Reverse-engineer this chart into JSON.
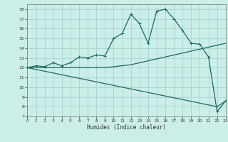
{
  "xlabel": "Humidex (Indice chaleur)",
  "bg_color": "#cceee8",
  "grid_color": "#aad8d0",
  "line_color": "#1a6b5a",
  "line1_x": [
    0,
    1,
    2,
    3,
    4,
    5,
    6,
    7,
    8,
    9,
    10,
    11,
    12,
    13,
    14,
    15,
    16,
    17,
    18,
    19,
    20,
    21,
    22,
    23
  ],
  "line1_y": [
    12.0,
    12.2,
    12.1,
    12.5,
    12.2,
    12.5,
    13.1,
    13.0,
    13.3,
    13.2,
    15.0,
    15.5,
    17.5,
    16.5,
    14.5,
    17.8,
    18.0,
    17.0,
    15.8,
    14.5,
    14.4,
    13.1,
    7.5,
    8.6
  ],
  "line2_x": [
    0,
    1,
    2,
    3,
    4,
    5,
    6,
    7,
    8,
    9,
    10,
    11,
    12,
    13,
    14,
    15,
    16,
    17,
    18,
    19,
    20,
    21,
    22,
    23
  ],
  "line2_y": [
    12.0,
    12.0,
    12.0,
    12.0,
    12.0,
    12.0,
    12.0,
    12.0,
    12.0,
    12.0,
    12.1,
    12.2,
    12.3,
    12.5,
    12.7,
    12.9,
    13.1,
    13.3,
    13.5,
    13.7,
    13.9,
    14.1,
    14.3,
    14.5
  ],
  "line3_x": [
    0,
    22,
    23
  ],
  "line3_y": [
    12.0,
    8.0,
    8.6
  ],
  "xlim": [
    0,
    23
  ],
  "ylim": [
    7,
    18.5
  ],
  "yticks": [
    7,
    8,
    9,
    10,
    11,
    12,
    13,
    14,
    15,
    16,
    17,
    18
  ],
  "xticks": [
    0,
    1,
    2,
    3,
    4,
    5,
    6,
    7,
    8,
    9,
    10,
    11,
    12,
    13,
    14,
    15,
    16,
    17,
    18,
    19,
    20,
    21,
    22,
    23
  ]
}
